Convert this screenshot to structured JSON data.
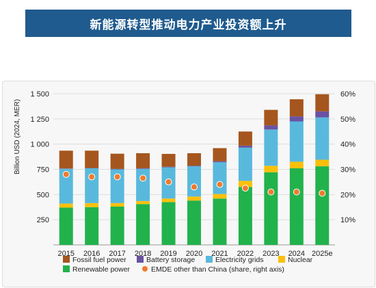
{
  "title": "新能源转型推动电力产业投资额上升",
  "chart_data": {
    "type": "bar",
    "stacked": true,
    "categories": [
      "2015",
      "2016",
      "2017",
      "2018",
      "2019",
      "2020",
      "2021",
      "2022",
      "2023",
      "2024",
      "2025e"
    ],
    "ylabel": "Billion USD (2024, MER)",
    "ylim": [
      0,
      1500
    ],
    "y_ticks": [
      "250",
      "500",
      "750",
      "1 000",
      "1 250",
      "1 500"
    ],
    "y2lim": [
      0,
      0.6
    ],
    "y2_ticks": [
      "10%",
      "20%",
      "30%",
      "40%",
      "50%",
      "60%"
    ],
    "grid": true,
    "legend_position": "bottom",
    "series": [
      {
        "name": "Renewable power",
        "color": "#22b24c",
        "values": [
          370,
          375,
          380,
          405,
          425,
          440,
          460,
          575,
          720,
          760,
          780
        ]
      },
      {
        "name": "Nuclear",
        "color": "#fcc00b",
        "values": [
          40,
          40,
          35,
          30,
          35,
          40,
          45,
          60,
          65,
          65,
          65
        ]
      },
      {
        "name": "Electricity grids",
        "color": "#59b9dc",
        "values": [
          345,
          345,
          335,
          320,
          310,
          300,
          315,
          330,
          360,
          400,
          420
        ]
      },
      {
        "name": "Battery storage",
        "color": "#6a52a3",
        "values": [
          3,
          3,
          4,
          5,
          5,
          6,
          10,
          20,
          40,
          50,
          60
        ]
      },
      {
        "name": "Fossil fuel power",
        "color": "#a5561e",
        "values": [
          177,
          172,
          151,
          150,
          128,
          124,
          130,
          140,
          155,
          170,
          170
        ]
      }
    ],
    "line_series": {
      "name": "EMDE other than China (share, right axis)",
      "color": "#ef7b2d",
      "axis": "right",
      "values": [
        0.28,
        0.27,
        0.27,
        0.265,
        0.25,
        0.23,
        0.24,
        0.225,
        0.21,
        0.21,
        0.205
      ]
    }
  },
  "legend": [
    {
      "label": "Fossil fuel power",
      "color": "#a5561e",
      "kind": "box"
    },
    {
      "label": "Battery storage",
      "color": "#6a52a3",
      "kind": "box"
    },
    {
      "label": "Electricity grids",
      "color": "#59b9dc",
      "kind": "box"
    },
    {
      "label": "Nuclear",
      "color": "#fcc00b",
      "kind": "box"
    },
    {
      "label": "Renewable power",
      "color": "#22b24c",
      "kind": "box"
    },
    {
      "label": "EMDE other than China (share, right axis)",
      "color": "#ef7b2d",
      "kind": "dot"
    }
  ]
}
